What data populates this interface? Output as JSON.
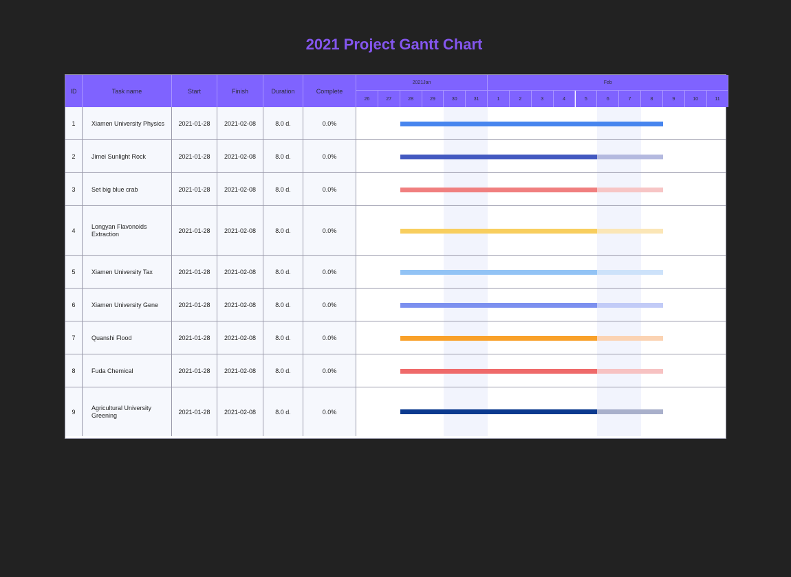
{
  "title": "2021 Project Gantt Chart",
  "columns": {
    "id": "ID",
    "task": "Task name",
    "start": "Start",
    "finish": "Finish",
    "duration": "Duration",
    "complete": "Complete"
  },
  "timeline": {
    "months": [
      {
        "label": "2021Jan",
        "days": [
          "26",
          "27",
          "28",
          "29",
          "30",
          "31"
        ]
      },
      {
        "label": "Feb",
        "days": [
          "1",
          "2",
          "3",
          "4",
          "5",
          "6",
          "7",
          "8",
          "9",
          "10",
          "11"
        ]
      }
    ],
    "weekend_days": [
      "2021-01-30",
      "2021-01-31",
      "2021-02-06",
      "2021-02-07"
    ]
  },
  "chart_data": {
    "type": "gantt",
    "title": "2021 Project Gantt Chart",
    "x_range": [
      "2021-01-26",
      "2021-02-11"
    ],
    "tasks": [
      {
        "id": "1",
        "name": "Xiamen University Physics",
        "start": "2021-01-28",
        "finish": "2021-02-08",
        "duration": "8.0 d.",
        "complete": "0.0%",
        "color": "#4785ee",
        "light": "#adc8f6",
        "progress_to": "2021-02-08"
      },
      {
        "id": "2",
        "name": "Jimei Sunlight Rock",
        "start": "2021-01-28",
        "finish": "2021-02-08",
        "duration": "8.0 d.",
        "complete": "0.0%",
        "color": "#4359c0",
        "light": "#b4b9df",
        "progress_to": "2021-02-05"
      },
      {
        "id": "3",
        "name": "Set big blue crab",
        "start": "2021-01-28",
        "finish": "2021-02-08",
        "duration": "8.0 d.",
        "complete": "0.0%",
        "color": "#f07f7f",
        "light": "#f7c5c5",
        "progress_to": "2021-02-05"
      },
      {
        "id": "4",
        "name": "Longyan Flavonoids Extraction",
        "start": "2021-01-28",
        "finish": "2021-02-08",
        "duration": "8.0 d.",
        "complete": "0.0%",
        "color": "#f8ce5e",
        "light": "#fbe6b6",
        "progress_to": "2021-02-05"
      },
      {
        "id": "5",
        "name": "Xiamen University Tax",
        "start": "2021-01-28",
        "finish": "2021-02-08",
        "duration": "8.0 d.",
        "complete": "0.0%",
        "color": "#92c3f5",
        "light": "#cde2fa",
        "progress_to": "2021-02-05"
      },
      {
        "id": "6",
        "name": "Xiamen University Gene",
        "start": "2021-01-28",
        "finish": "2021-02-08",
        "duration": "8.0 d.",
        "complete": "0.0%",
        "color": "#7c90ef",
        "light": "#c2cbf7",
        "progress_to": "2021-02-05"
      },
      {
        "id": "7",
        "name": "Quanshi Flood",
        "start": "2021-01-28",
        "finish": "2021-02-08",
        "duration": "8.0 d.",
        "complete": "0.0%",
        "color": "#f9a12a",
        "light": "#fbd3b3",
        "progress_to": "2021-02-05"
      },
      {
        "id": "8",
        "name": "Fuda Chemical",
        "start": "2021-01-28",
        "finish": "2021-02-08",
        "duration": "8.0 d.",
        "complete": "0.0%",
        "color": "#ef6a6a",
        "light": "#f7c2c2",
        "progress_to": "2021-02-05"
      },
      {
        "id": "9",
        "name": "Agricultural University Greening",
        "start": "2021-01-28",
        "finish": "2021-02-08",
        "duration": "8.0 d.",
        "complete": "0.0%",
        "color": "#0c3a8f",
        "light": "#a9b0cb",
        "progress_to": "2021-02-05"
      }
    ]
  }
}
